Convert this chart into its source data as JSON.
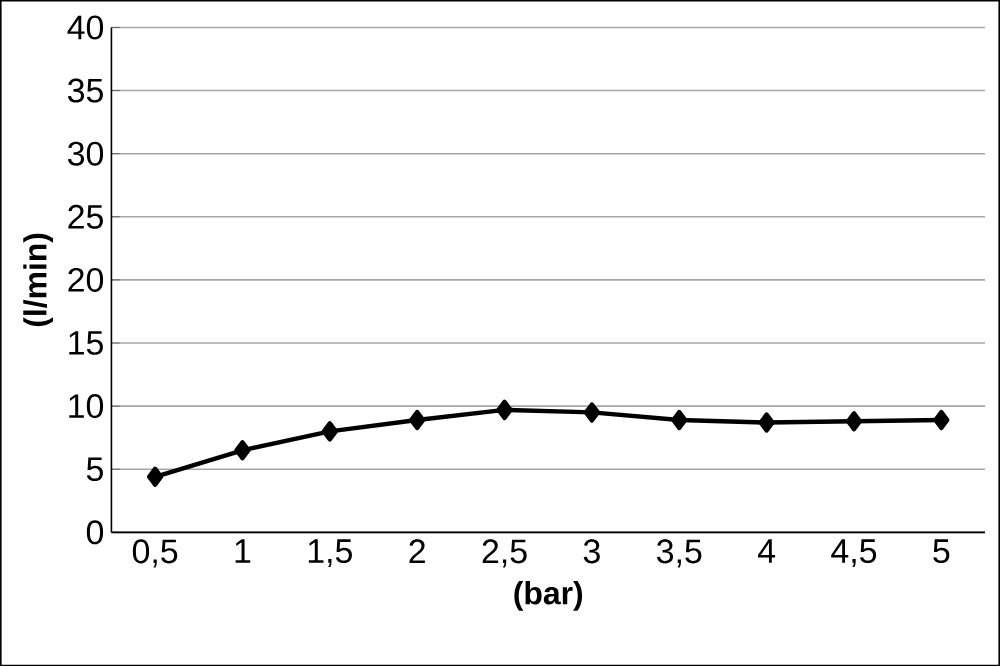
{
  "chart_data": {
    "type": "line",
    "xlabel": "(bar)",
    "ylabel": "(l/min)",
    "categories": [
      "0,5",
      "1",
      "1,5",
      "2",
      "2,5",
      "3",
      "3,5",
      "4",
      "4,5",
      "5"
    ],
    "series": [
      {
        "color": "#000000",
        "values": [
          4.4,
          6.5,
          8.0,
          8.9,
          9.7,
          9.5,
          8.9,
          8.7,
          8.8,
          8.9
        ]
      }
    ],
    "ylim": [
      0,
      40
    ],
    "yticks": [
      0,
      5,
      10,
      15,
      20,
      25,
      30,
      35,
      40
    ],
    "grid": "y",
    "marker": "diamond",
    "line_style": "solid"
  }
}
